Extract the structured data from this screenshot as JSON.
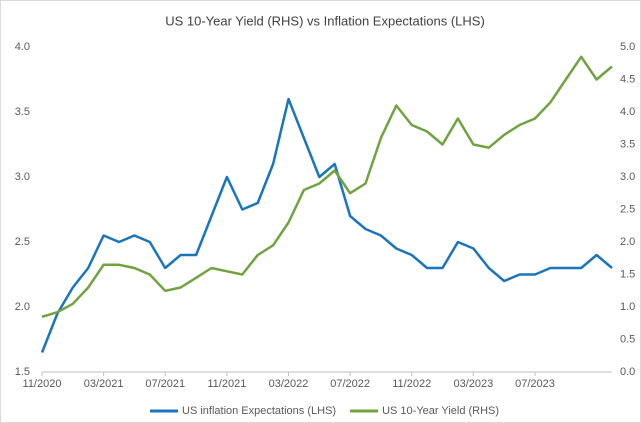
{
  "chart_data": {
    "type": "line",
    "title": "US 10-Year Yield (RHS) vs Inflation Expectations (LHS)",
    "x": [
      "11/2020",
      "12/2020",
      "01/2021",
      "02/2021",
      "03/2021",
      "04/2021",
      "05/2021",
      "06/2021",
      "07/2021",
      "08/2021",
      "09/2021",
      "10/2021",
      "11/2021",
      "12/2021",
      "01/2022",
      "02/2022",
      "03/2022",
      "04/2022",
      "05/2022",
      "06/2022",
      "07/2022",
      "08/2022",
      "09/2022",
      "10/2022",
      "11/2022",
      "12/2022",
      "01/2023",
      "02/2023",
      "03/2023",
      "04/2023",
      "05/2023",
      "06/2023",
      "07/2023",
      "08/2023",
      "09/2023",
      "10/2023",
      "11/2023",
      "12/2023"
    ],
    "xticks": [
      "11/2020",
      "03/2021",
      "07/2021",
      "11/2021",
      "03/2022",
      "07/2022",
      "11/2022",
      "03/2023",
      "07/2023"
    ],
    "series": [
      {
        "name": "US inflation Expectations (LHS)",
        "color": "#1b75bc",
        "axis": "y",
        "values": [
          1.65,
          1.95,
          2.15,
          2.3,
          2.55,
          2.5,
          2.55,
          2.5,
          2.3,
          2.4,
          2.4,
          2.7,
          3.0,
          2.75,
          2.8,
          3.1,
          3.6,
          3.3,
          3.0,
          3.1,
          2.7,
          2.6,
          2.55,
          2.45,
          2.4,
          2.3,
          2.3,
          2.5,
          2.45,
          2.3,
          2.2,
          2.25,
          2.25,
          2.3,
          2.3,
          2.3,
          2.4,
          2.3
        ]
      },
      {
        "name": "US 10-Year Yield (RHS)",
        "color": "#70a33f",
        "axis": "y2",
        "values": [
          0.85,
          0.92,
          1.05,
          1.3,
          1.65,
          1.65,
          1.6,
          1.5,
          1.25,
          1.3,
          1.45,
          1.6,
          1.55,
          1.5,
          1.8,
          1.95,
          2.3,
          2.8,
          2.9,
          3.1,
          2.75,
          2.9,
          3.6,
          4.1,
          3.8,
          3.7,
          3.5,
          3.9,
          3.5,
          3.45,
          3.65,
          3.8,
          3.9,
          4.15,
          4.5,
          4.85,
          4.5,
          4.7
        ]
      }
    ],
    "ylim": [
      1.5,
      4.0
    ],
    "yticks": [
      1.5,
      {
        "value": 2,
        "label": "2.0"
      },
      2.5,
      {
        "value": 3,
        "label": "3.0"
      },
      3.5,
      {
        "value": 4,
        "label": "4.0"
      }
    ],
    "y2lim": [
      0,
      5
    ],
    "y2ticks": [
      {
        "value": 0,
        "label": "0.0"
      },
      0.5,
      {
        "value": 1,
        "label": "1.0"
      },
      1.5,
      {
        "value": 2,
        "label": "2.0"
      },
      2.5,
      {
        "value": 3,
        "label": "3.0"
      },
      3.5,
      {
        "value": 4,
        "label": "4.0"
      },
      4.5,
      {
        "value": 5,
        "label": "5.0"
      }
    ],
    "grid": false,
    "legend": "bottom"
  }
}
